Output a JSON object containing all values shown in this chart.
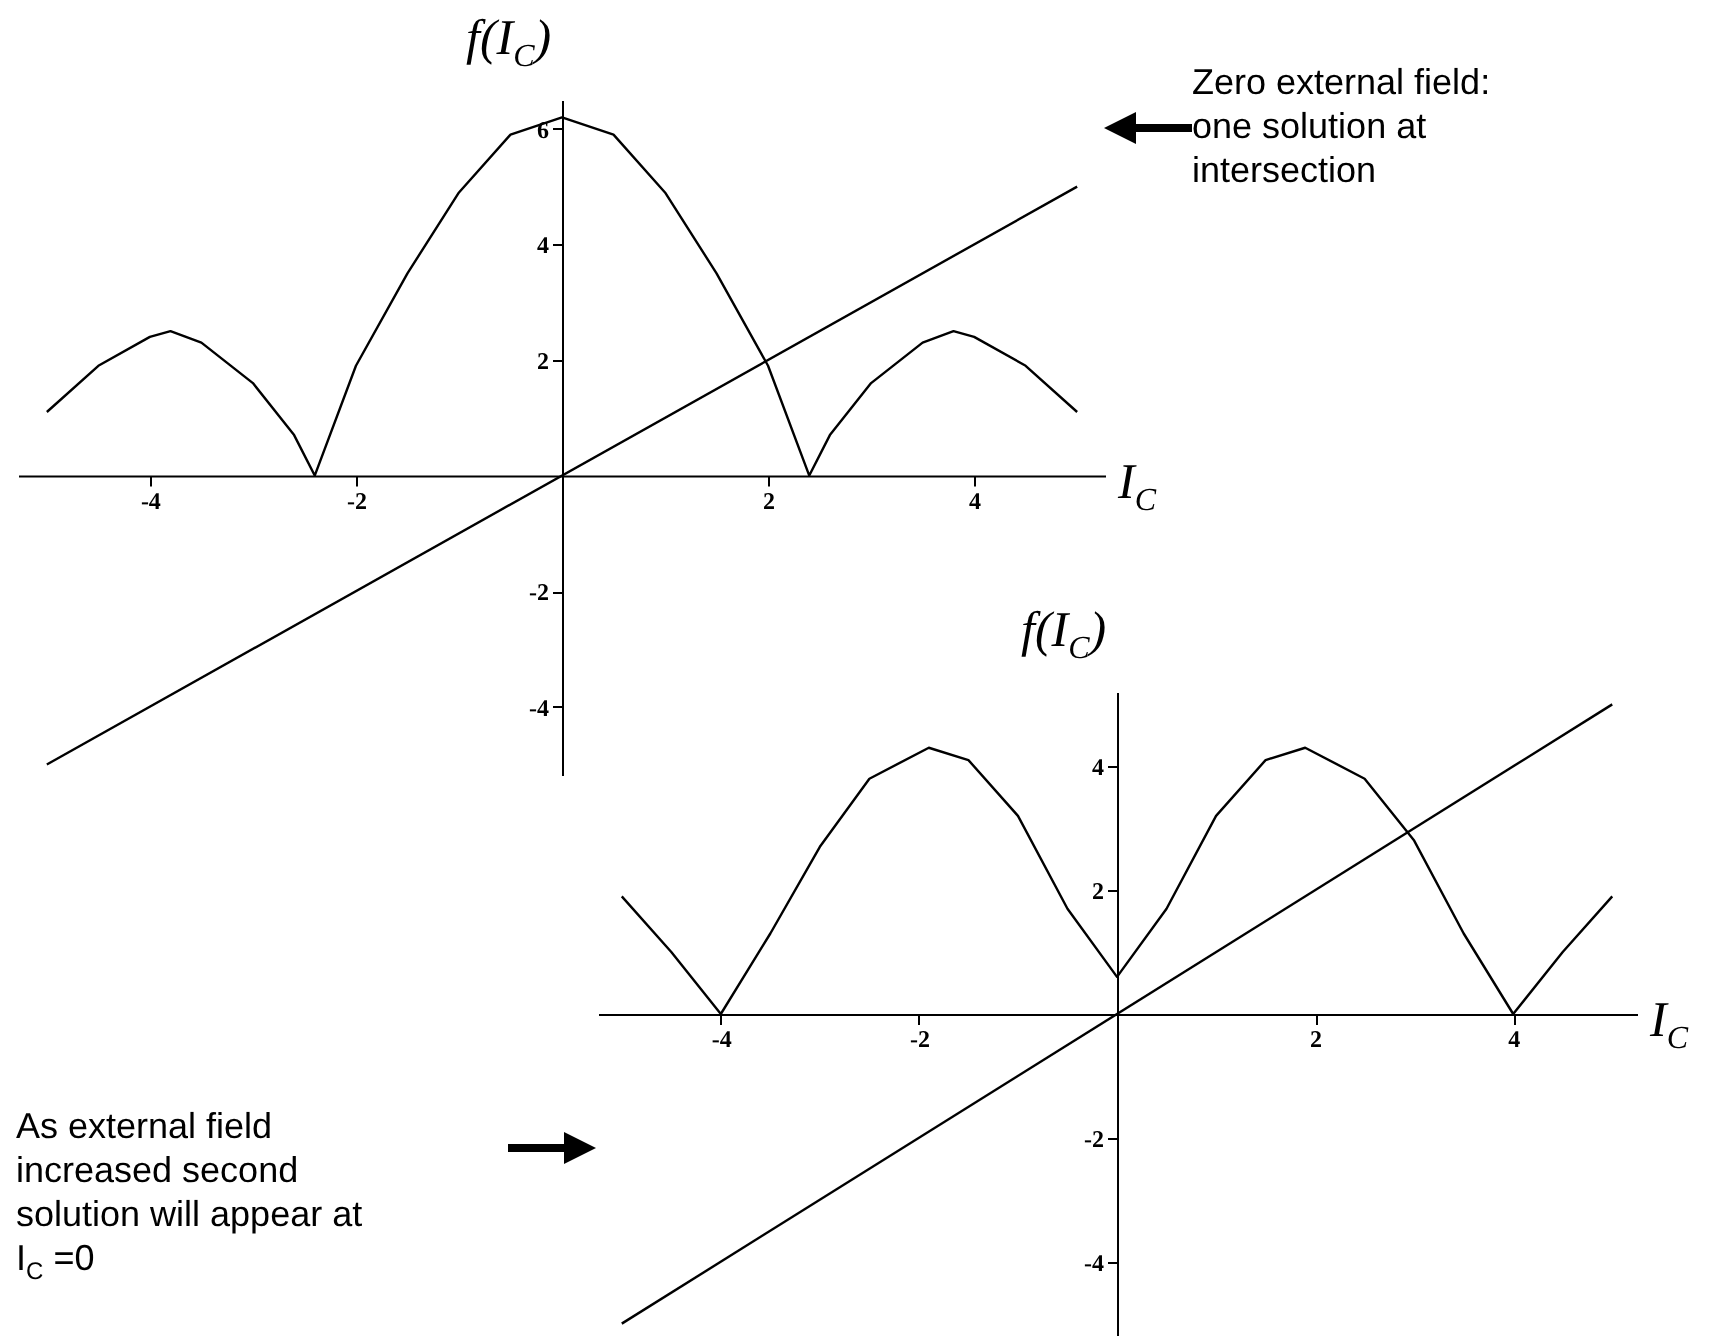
{
  "chart_data": [
    {
      "type": "line",
      "xlabel": "I$_{C}$",
      "ylabel": "f(I$_{C}$)",
      "xlim": [
        -5.28,
        5.28
      ],
      "ylim": [
        -5.2,
        6.5
      ],
      "xticks": [
        -4,
        -2,
        2,
        4
      ],
      "yticks": [
        -4,
        -2,
        2,
        4,
        6
      ],
      "annotations": [
        "Zero external field: one solution at intersection"
      ],
      "series": [
        {
          "color": "#000000",
          "x": [
            -5,
            -4.5,
            -4,
            -3.8,
            -3.5,
            -3,
            -2.6,
            -2.4,
            -2,
            -1.5,
            -1,
            -0.5,
            0,
            0.5,
            1,
            1.5,
            2,
            2.4,
            2.6,
            3,
            3.5,
            3.8,
            4,
            4.5,
            5
          ],
          "values": [
            1.1,
            1.9,
            2.4,
            2.5,
            2.3,
            1.6,
            0.7,
            0,
            1.9,
            3.5,
            4.9,
            5.9,
            6.2,
            5.9,
            4.9,
            3.5,
            1.9,
            0,
            0.7,
            1.6,
            2.3,
            2.5,
            2.4,
            1.9,
            1.1
          ]
        },
        {
          "color": "#000000",
          "x": [
            -5,
            5
          ],
          "values": [
            -5,
            5
          ]
        }
      ]
    },
    {
      "type": "line",
      "xlabel": "I$_{C}$",
      "ylabel": "f(I$_{C}$)",
      "xlim": [
        -5.24,
        5.26
      ],
      "ylim": [
        -5.2,
        5.2
      ],
      "xticks": [
        -4,
        -2,
        2,
        4
      ],
      "yticks": [
        -4,
        -2,
        2,
        4
      ],
      "annotations": [
        "As external field increased second solution will appear at I$_{C}$ =0"
      ],
      "series": [
        {
          "color": "#000000",
          "x": [
            -5,
            -4.5,
            -4,
            -3.5,
            -3,
            -2.5,
            -1.9,
            -1.5,
            -1,
            -0.5,
            0,
            0.5,
            1,
            1.5,
            1.9,
            2.5,
            3,
            3.5,
            4,
            4.5,
            5
          ],
          "values": [
            1.9,
            1,
            0,
            1.3,
            2.7,
            3.8,
            4.3,
            4.1,
            3.2,
            1.7,
            0.6,
            1.7,
            3.2,
            4.1,
            4.3,
            3.8,
            2.8,
            1.3,
            0,
            1,
            1.9
          ]
        },
        {
          "color": "#000000",
          "x": [
            -5,
            5
          ],
          "values": [
            -5,
            5
          ]
        }
      ]
    }
  ]
}
